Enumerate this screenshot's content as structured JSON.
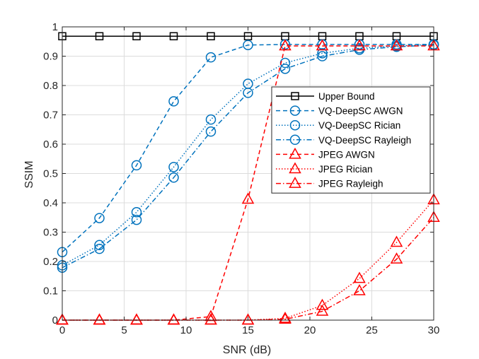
{
  "chart_data": {
    "type": "line",
    "title": "",
    "xlabel": "SNR (dB)",
    "ylabel": "SSIM",
    "xlim": [
      0,
      30
    ],
    "ylim": [
      0,
      1
    ],
    "xticks": [
      0,
      5,
      10,
      15,
      20,
      25,
      30
    ],
    "yticks": [
      0,
      0.1,
      0.2,
      0.3,
      0.4,
      0.5,
      0.6,
      0.7,
      0.8,
      0.9,
      1
    ],
    "ytick_labels": [
      "0",
      "0.1",
      "0.2",
      "0.3",
      "0.4",
      "0.5",
      "0.6",
      "0.7",
      "0.8",
      "0.9",
      "1"
    ],
    "grid": true,
    "legend_position": "right",
    "x": [
      0,
      3,
      6,
      9,
      12,
      15,
      18,
      21,
      24,
      27,
      30
    ],
    "series": [
      {
        "name": "Upper Bound",
        "color": "#000000",
        "dash": "solid",
        "marker": "square",
        "values": [
          0.968,
          0.968,
          0.968,
          0.968,
          0.968,
          0.968,
          0.968,
          0.968,
          0.968,
          0.968,
          0.968
        ]
      },
      {
        "name": "VQ-DeepSC AWGN",
        "color": "#0072BD",
        "dash": "dashed",
        "marker": "circle",
        "values": [
          0.232,
          0.348,
          0.528,
          0.746,
          0.896,
          0.938,
          0.94,
          0.94,
          0.94,
          0.94,
          0.94
        ]
      },
      {
        "name": "VQ-DeepSC Rician",
        "color": "#0072BD",
        "dash": "dotted",
        "marker": "circle",
        "values": [
          0.187,
          0.256,
          0.368,
          0.522,
          0.684,
          0.806,
          0.877,
          0.91,
          0.927,
          0.935,
          0.94
        ]
      },
      {
        "name": "VQ-DeepSC Rayleigh",
        "color": "#0072BD",
        "dash": "dashdot",
        "marker": "circle",
        "values": [
          0.179,
          0.243,
          0.342,
          0.486,
          0.643,
          0.775,
          0.857,
          0.9,
          0.922,
          0.932,
          0.938
        ]
      },
      {
        "name": "JPEG AWGN",
        "color": "#FF0000",
        "dash": "dashed",
        "marker": "triangle",
        "values": [
          0.0,
          0.0,
          0.0,
          0.0,
          0.012,
          0.412,
          0.935,
          0.935,
          0.935,
          0.935,
          0.935
        ]
      },
      {
        "name": "JPEG Rician",
        "color": "#FF0000",
        "dash": "dotted",
        "marker": "triangle",
        "values": [
          0.0,
          0.0,
          0.0,
          0.0,
          0.0,
          0.0,
          0.006,
          0.05,
          0.142,
          0.265,
          0.41
        ]
      },
      {
        "name": "JPEG Rayleigh",
        "color": "#FF0000",
        "dash": "dashdot",
        "marker": "triangle",
        "values": [
          0.0,
          0.0,
          0.0,
          0.0,
          0.0,
          0.0,
          0.003,
          0.03,
          0.1,
          0.208,
          0.35
        ]
      }
    ]
  }
}
